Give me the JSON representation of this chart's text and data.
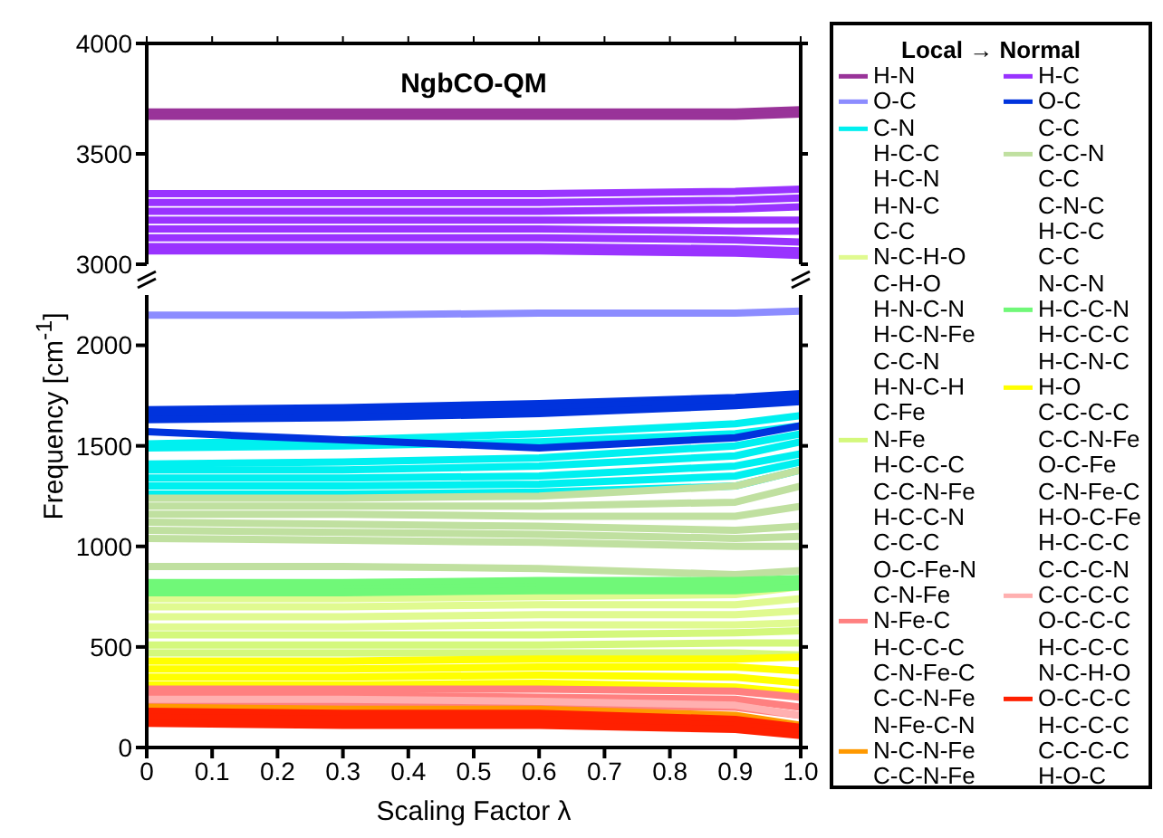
{
  "chart_data": [
    {
      "type": "line",
      "title": "NgbCO-QM",
      "legend_title": "Local → Normal",
      "legend": "right",
      "tick_labels": "y",
      "x": [
        0,
        0.3,
        0.6,
        0.9,
        1.0
      ],
      "xlim": [
        0,
        1
      ],
      "xticks": [
        0,
        0.1,
        0.2,
        0.3,
        0.4,
        0.5,
        0.6,
        0.7,
        0.8,
        0.9,
        1
      ],
      "ylim": [
        3000,
        4000
      ],
      "yticks": [
        3000,
        3500,
        4000
      ],
      "series": [
        {
          "name": "H-N",
          "color": "#993399",
          "values": [
            3690,
            3690,
            3690,
            3690,
            3700
          ]
        },
        {
          "color": "#993399",
          "values": [
            3670,
            3670,
            3670,
            3670,
            3680
          ]
        },
        {
          "name": "H-C",
          "color": "#9933ff",
          "values": [
            3320,
            3320,
            3320,
            3330,
            3340
          ]
        },
        {
          "color": "#9933ff",
          "values": [
            3280,
            3280,
            3280,
            3290,
            3300
          ]
        },
        {
          "color": "#9933ff",
          "values": [
            3240,
            3240,
            3240,
            3250,
            3260
          ]
        },
        {
          "color": "#9933ff",
          "values": [
            3200,
            3200,
            3200,
            3200,
            3200
          ]
        },
        {
          "color": "#9933ff",
          "values": [
            3160,
            3160,
            3160,
            3150,
            3150
          ]
        },
        {
          "color": "#9933ff",
          "values": [
            3120,
            3120,
            3120,
            3110,
            3100
          ]
        },
        {
          "color": "#9933ff",
          "values": [
            3080,
            3080,
            3080,
            3070,
            3060
          ]
        },
        {
          "color": "#9933ff",
          "values": [
            3060,
            3060,
            3060,
            3050,
            3040
          ]
        }
      ]
    },
    {
      "type": "line",
      "xlabel": "Scaling Factor λ",
      "ylabel": "Frequency  [cm$^{-1}$]",
      "legend": "right",
      "x": [
        0,
        0.3,
        0.6,
        0.9,
        1.0
      ],
      "xlim": [
        0,
        1
      ],
      "xticks": [
        0,
        0.1,
        0.2,
        0.3,
        0.4,
        0.5,
        0.6,
        0.7,
        0.8,
        0.9,
        {
          "value": 1,
          "label": "1.0"
        }
      ],
      "ylim": [
        0,
        2250
      ],
      "yticks": [
        0,
        500,
        1000,
        1500,
        2000
      ],
      "series": [
        {
          "name": "O-C",
          "color": "#8c8cff",
          "values": [
            2150,
            2150,
            2160,
            2160,
            2170
          ]
        },
        {
          "name": "O-C\nC-C",
          "color": "#0033dd",
          "values": [
            1680,
            1690,
            1710,
            1740,
            1760
          ]
        },
        {
          "color": "#0033dd",
          "values": [
            1660,
            1670,
            1690,
            1720,
            1740
          ]
        },
        {
          "color": "#0033dd",
          "values": [
            1630,
            1640,
            1660,
            1700,
            1720
          ]
        },
        {
          "name": "C-N\nH-C-C\nH-C-N\nH-N-C\nC-C",
          "color": "#00f0f0",
          "values": [
            1510,
            1530,
            1560,
            1610,
            1650
          ]
        },
        {
          "color": "#00f0f0",
          "values": [
            1490,
            1500,
            1520,
            1560,
            1600
          ]
        },
        {
          "color": "#00f0f0",
          "values": [
            1410,
            1420,
            1440,
            1500,
            1560
          ]
        },
        {
          "color": "#00f0f0",
          "values": [
            1380,
            1380,
            1400,
            1450,
            1520
          ]
        },
        {
          "color": "#00f0f0",
          "values": [
            1340,
            1340,
            1350,
            1400,
            1460
          ]
        },
        {
          "color": "#00f0f0",
          "values": [
            1300,
            1300,
            1310,
            1350,
            1420
          ]
        },
        {
          "color": "#00f0f0",
          "values": [
            1260,
            1260,
            1270,
            1300,
            1380
          ]
        },
        {
          "name": "C-C-N\nC-C\nC-N-C\nH-C-C\nC-C\nN-C-N",
          "color": "#c0e0a0",
          "values": [
            1240,
            1240,
            1250,
            1300,
            1380
          ]
        },
        {
          "color": "#c0e0a0",
          "values": [
            1200,
            1200,
            1200,
            1220,
            1300
          ]
        },
        {
          "color": "#c0e0a0",
          "values": [
            1160,
            1160,
            1150,
            1150,
            1200
          ]
        },
        {
          "color": "#c0e0a0",
          "values": [
            1120,
            1110,
            1100,
            1080,
            1100
          ]
        },
        {
          "color": "#c0e0a0",
          "values": [
            1080,
            1070,
            1060,
            1040,
            1050
          ]
        },
        {
          "color": "#c0e0a0",
          "values": [
            1040,
            1030,
            1020,
            1000,
            1000
          ]
        },
        {
          "color": "#c0e0a0",
          "values": [
            900,
            900,
            890,
            860,
            880
          ]
        },
        {
          "name": "N-C-H-O\nC-H-O\nH-N-C-N\nH-C-N-Fe\nC-C-N\nH-N-C-H\nC-Fe",
          "color": "#e0fa90",
          "values": [
            740,
            740,
            750,
            760,
            800
          ]
        },
        {
          "color": "#e0fa90",
          "values": [
            700,
            700,
            710,
            710,
            740
          ]
        },
        {
          "color": "#e0fa90",
          "values": [
            650,
            650,
            660,
            660,
            680
          ]
        },
        {
          "color": "#e0fa90",
          "values": [
            600,
            600,
            610,
            610,
            620
          ]
        },
        {
          "name": "H-C-C-N\nH-C-C-C\nH-C-N-C",
          "color": "#70f878",
          "values": [
            820,
            820,
            830,
            830,
            840
          ]
        },
        {
          "color": "#70f878",
          "values": [
            790,
            790,
            800,
            800,
            820
          ]
        },
        {
          "color": "#70f878",
          "values": [
            770,
            770,
            780,
            780,
            800
          ]
        },
        {
          "name": "N-Fe\nH-C-C-C\nC-C-N-Fe\nH-C-C-N\nC-C-C\nO-C-Fe-N\nC-N-Fe",
          "color": "#d4f87c",
          "values": [
            560,
            560,
            560,
            570,
            580
          ]
        },
        {
          "color": "#d4f87c",
          "values": [
            510,
            510,
            510,
            520,
            520
          ]
        },
        {
          "color": "#d4f87c",
          "values": [
            470,
            470,
            470,
            470,
            460
          ]
        },
        {
          "name": "H-O\nC-C-C-C\nC-C-N-Fe\nO-C-Fe\nC-N-Fe-C\nH-O-C-Fe\nH-C-C-C\nC-C-C-N",
          "color": "#ffff00",
          "values": [
            430,
            430,
            440,
            440,
            450
          ]
        },
        {
          "color": "#ffff00",
          "values": [
            390,
            390,
            400,
            400,
            380
          ]
        },
        {
          "color": "#ffff00",
          "values": [
            350,
            350,
            360,
            350,
            320
          ]
        },
        {
          "color": "#ffff00",
          "values": [
            310,
            310,
            320,
            300,
            270
          ]
        },
        {
          "name": "N-Fe-C\nH-C-C-C\nC-N-Fe-C\nC-C-N-Fe\nN-Fe-C-N",
          "color": "#ff8080",
          "values": [
            290,
            290,
            290,
            280,
            250
          ]
        },
        {
          "color": "#ff8080",
          "values": [
            260,
            260,
            250,
            240,
            200
          ]
        },
        {
          "color": "#ff8080",
          "values": [
            220,
            220,
            210,
            200,
            160
          ]
        },
        {
          "name": "C-C-C-C\nO-C-C-C\nH-C-C-C\nN-C-H-O",
          "color": "#ffb0b0",
          "values": [
            240,
            240,
            230,
            210,
            160
          ]
        },
        {
          "name": "N-C-N-Fe\nC-C-N-Fe",
          "color": "#ff9900",
          "values": [
            200,
            190,
            190,
            160,
            110
          ]
        },
        {
          "name": "O-C-C-C\nH-C-C-C\nC-C-C-C\nH-O-C",
          "color": "#ff2000",
          "values": [
            180,
            170,
            170,
            140,
            100
          ]
        },
        {
          "color": "#ff2000",
          "values": [
            150,
            140,
            140,
            110,
            80
          ]
        },
        {
          "color": "#ff2000",
          "values": [
            120,
            110,
            110,
            90,
            60
          ]
        },
        {
          "color": "#0033dd",
          "values": [
            1570,
            1530,
            1490,
            1540,
            1600
          ]
        }
      ]
    }
  ]
}
